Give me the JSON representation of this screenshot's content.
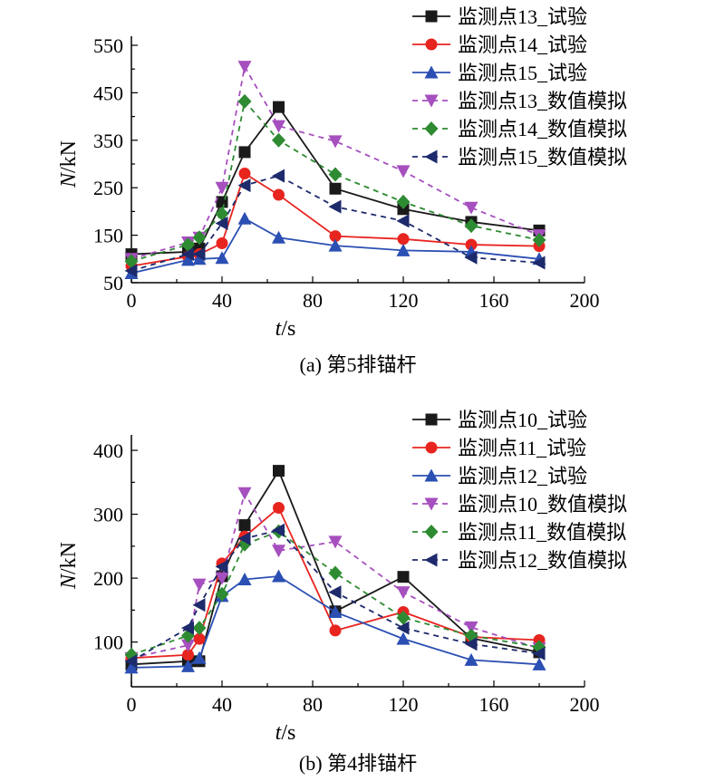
{
  "chart_data": [
    {
      "type": "line",
      "caption": "(a) 第5排锚杆",
      "xlabel_var": "t",
      "xlabel_unit": "/s",
      "ylabel_var": "N",
      "ylabel_unit": "/kN",
      "xlim": [
        0,
        200
      ],
      "ylim": [
        50,
        550
      ],
      "xticks": [
        0,
        40,
        80,
        120,
        160,
        200
      ],
      "yticks": [
        50,
        150,
        250,
        350,
        450,
        550
      ],
      "grid": false,
      "legend_position": "top-right",
      "series": [
        {
          "name": "监测点13_试验",
          "color": "#1a1a1a",
          "dash": "solid",
          "marker": "square",
          "x": [
            0,
            25,
            30,
            40,
            50,
            65,
            90,
            120,
            150,
            180
          ],
          "y": [
            110,
            115,
            122,
            220,
            325,
            420,
            248,
            205,
            178,
            160
          ]
        },
        {
          "name": "监测点14_试验",
          "color": "#e8241f",
          "dash": "solid",
          "marker": "circle",
          "x": [
            0,
            25,
            30,
            40,
            50,
            65,
            90,
            120,
            150,
            180
          ],
          "y": [
            85,
            105,
            110,
            133,
            280,
            235,
            148,
            142,
            130,
            127
          ]
        },
        {
          "name": "监测点15_试验",
          "color": "#2b4fb3",
          "dash": "solid",
          "marker": "triangle-up",
          "x": [
            0,
            25,
            30,
            40,
            50,
            65,
            90,
            120,
            150,
            180
          ],
          "y": [
            70,
            98,
            100,
            102,
            185,
            145,
            128,
            118,
            115,
            100
          ]
        },
        {
          "name": "监测点13_数值模拟",
          "color": "#a64fbf",
          "dash": "dash",
          "marker": "triangle-down",
          "x": [
            0,
            25,
            30,
            40,
            50,
            65,
            90,
            120,
            150,
            180
          ],
          "y": [
            100,
            135,
            145,
            250,
            505,
            380,
            348,
            285,
            208,
            150
          ]
        },
        {
          "name": "监测点14_数值模拟",
          "color": "#2e8b32",
          "dash": "dash",
          "marker": "diamond",
          "x": [
            0,
            25,
            30,
            40,
            50,
            65,
            90,
            120,
            150,
            180
          ],
          "y": [
            95,
            130,
            145,
            195,
            432,
            350,
            278,
            220,
            170,
            140
          ]
        },
        {
          "name": "监测点15_数值模拟",
          "color": "#1d2a6b",
          "dash": "dash",
          "marker": "triangle-left",
          "x": [
            0,
            25,
            30,
            40,
            50,
            65,
            90,
            120,
            150,
            180
          ],
          "y": [
            75,
            110,
            110,
            175,
            255,
            275,
            210,
            180,
            103,
            92
          ]
        }
      ]
    },
    {
      "type": "line",
      "caption": "(b) 第4排锚杆",
      "xlabel_var": "t",
      "xlabel_unit": "/s",
      "ylabel_var": "N",
      "ylabel_unit": "/kN",
      "xlim": [
        0,
        200
      ],
      "ylim": [
        30,
        410
      ],
      "xticks": [
        0,
        40,
        80,
        120,
        160,
        200
      ],
      "yticks": [
        100,
        200,
        300,
        400
      ],
      "grid": false,
      "legend_position": "top-right",
      "series": [
        {
          "name": "监测点10_试验",
          "color": "#1a1a1a",
          "dash": "solid",
          "marker": "square",
          "x": [
            0,
            25,
            30,
            40,
            50,
            65,
            90,
            120,
            150,
            180
          ],
          "y": [
            65,
            70,
            70,
            203,
            283,
            368,
            148,
            202,
            106,
            84
          ]
        },
        {
          "name": "监测点11_试验",
          "color": "#e8241f",
          "dash": "solid",
          "marker": "circle",
          "x": [
            0,
            25,
            30,
            40,
            50,
            65,
            90,
            120,
            150,
            180
          ],
          "y": [
            75,
            80,
            105,
            223,
            265,
            310,
            118,
            147,
            108,
            103
          ]
        },
        {
          "name": "监测点12_试验",
          "color": "#2b4fb3",
          "dash": "solid",
          "marker": "triangle-up",
          "x": [
            0,
            25,
            30,
            40,
            50,
            65,
            90,
            120,
            150,
            180
          ],
          "y": [
            60,
            62,
            75,
            172,
            198,
            203,
            147,
            105,
            72,
            65
          ]
        },
        {
          "name": "监测点10_数值模拟",
          "color": "#a64fbf",
          "dash": "dash",
          "marker": "triangle-down",
          "x": [
            0,
            25,
            30,
            40,
            50,
            65,
            90,
            120,
            150,
            180
          ],
          "y": [
            75,
            95,
            190,
            200,
            333,
            243,
            257,
            178,
            123,
            90
          ]
        },
        {
          "name": "监测点11_数值模拟",
          "color": "#2e8b32",
          "dash": "dash",
          "marker": "diamond",
          "x": [
            0,
            25,
            30,
            40,
            50,
            65,
            90,
            120,
            150,
            180
          ],
          "y": [
            80,
            110,
            122,
            175,
            253,
            273,
            208,
            138,
            110,
            92
          ]
        },
        {
          "name": "监测点12_数值模拟",
          "color": "#1d2a6b",
          "dash": "dash",
          "marker": "triangle-left",
          "x": [
            0,
            25,
            30,
            40,
            50,
            65,
            90,
            120,
            150,
            180
          ],
          "y": [
            70,
            122,
            158,
            218,
            262,
            275,
            178,
            122,
            97,
            82
          ]
        }
      ]
    }
  ]
}
